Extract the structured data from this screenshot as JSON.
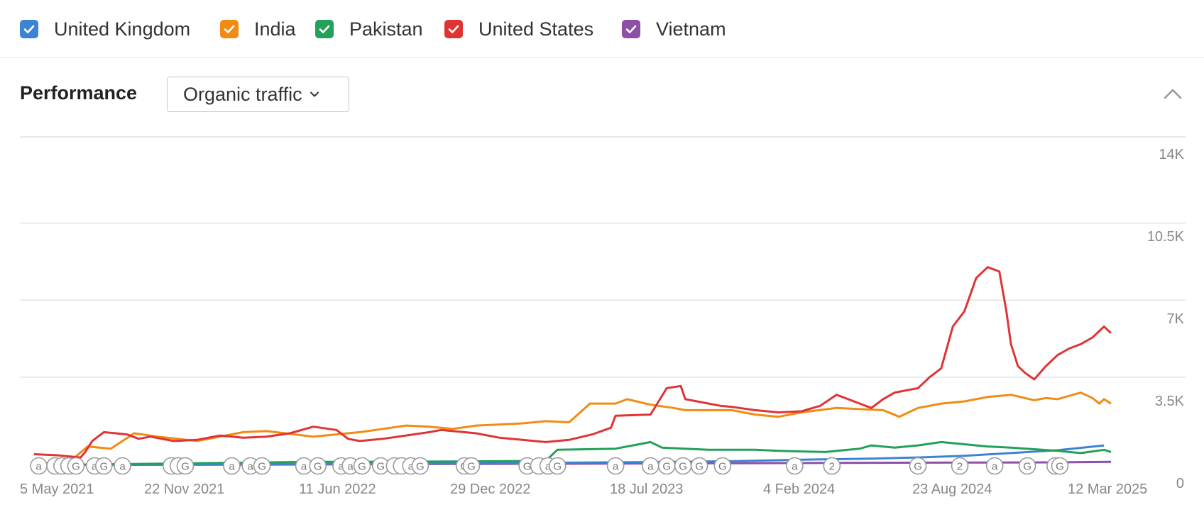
{
  "legend": [
    {
      "label": "United Kingdom",
      "color": "#3b84d4"
    },
    {
      "label": "India",
      "color": "#f28b13"
    },
    {
      "label": "Pakistan",
      "color": "#23a05a"
    },
    {
      "label": "United States",
      "color": "#e03434"
    },
    {
      "label": "Vietnam",
      "color": "#8e4fa6"
    }
  ],
  "header": {
    "title": "Performance",
    "dropdown_label": "Organic traffic",
    "collapse_icon": "chevron-up-icon"
  },
  "chart_data": {
    "type": "line",
    "x_tick_labels": [
      "5 May 2021",
      "22 Nov 2021",
      "11 Jun 2022",
      "29 Dec 2022",
      "18 Jul 2023",
      "4 Feb 2024",
      "23 Aug 2024",
      "12 Mar 2025"
    ],
    "y_tick_labels": [
      "0",
      "3.5K",
      "7K",
      "10.5K",
      "14K"
    ],
    "y_ticks": [
      0,
      3500,
      7000,
      10500,
      14000
    ],
    "ylim": [
      0,
      14500
    ],
    "x_range_months": [
      0,
      46.3
    ],
    "grid": true,
    "legend_position": "top",
    "series": [
      {
        "name": "United Kingdom",
        "color": "#3b84d4",
        "points": [
          [
            0,
            0
          ],
          [
            6,
            40
          ],
          [
            12,
            60
          ],
          [
            18,
            90
          ],
          [
            22,
            110
          ],
          [
            26,
            140
          ],
          [
            30,
            180
          ],
          [
            33,
            250
          ],
          [
            36,
            300
          ],
          [
            38,
            350
          ],
          [
            40,
            430
          ],
          [
            42,
            550
          ],
          [
            44,
            680
          ],
          [
            46,
            900
          ]
        ]
      },
      {
        "name": "India",
        "color": "#f28b13",
        "points": [
          [
            0,
            50
          ],
          [
            1,
            150
          ],
          [
            1.6,
            220
          ],
          [
            2.3,
            850
          ],
          [
            3.3,
            750
          ],
          [
            4.3,
            1450
          ],
          [
            5.3,
            1300
          ],
          [
            7,
            1100
          ],
          [
            9,
            1500
          ],
          [
            10,
            1550
          ],
          [
            12,
            1300
          ],
          [
            13,
            1400
          ],
          [
            14,
            1500
          ],
          [
            15,
            1650
          ],
          [
            16,
            1800
          ],
          [
            17,
            1750
          ],
          [
            18,
            1650
          ],
          [
            19,
            1800
          ],
          [
            20,
            1850
          ],
          [
            21,
            1900
          ],
          [
            22,
            2000
          ],
          [
            23,
            1950
          ],
          [
            23.9,
            2800
          ],
          [
            25,
            2800
          ],
          [
            25.5,
            3000
          ],
          [
            26.5,
            2750
          ],
          [
            27.5,
            2600
          ],
          [
            28,
            2500
          ],
          [
            30,
            2500
          ],
          [
            31,
            2300
          ],
          [
            32,
            2200
          ],
          [
            33,
            2400
          ],
          [
            34.5,
            2600
          ],
          [
            35.5,
            2550
          ],
          [
            36.5,
            2500
          ],
          [
            37.2,
            2200
          ],
          [
            38,
            2600
          ],
          [
            39,
            2800
          ],
          [
            40,
            2900
          ],
          [
            41,
            3100
          ],
          [
            42,
            3200
          ],
          [
            43,
            2950
          ],
          [
            43.5,
            3050
          ],
          [
            44,
            3000
          ],
          [
            45,
            3300
          ],
          [
            45.5,
            3050
          ],
          [
            45.8,
            2800
          ],
          [
            46,
            3000
          ],
          [
            46.3,
            2800
          ]
        ]
      },
      {
        "name": "Pakistan",
        "color": "#23a05a",
        "points": [
          [
            0,
            0
          ],
          [
            4,
            50
          ],
          [
            8,
            100
          ],
          [
            12,
            150
          ],
          [
            16,
            160
          ],
          [
            20,
            180
          ],
          [
            22,
            200
          ],
          [
            22.5,
            700
          ],
          [
            25,
            750
          ],
          [
            26,
            950
          ],
          [
            26.5,
            1050
          ],
          [
            27,
            800
          ],
          [
            29,
            700
          ],
          [
            31,
            700
          ],
          [
            32,
            650
          ],
          [
            34,
            600
          ],
          [
            35,
            700
          ],
          [
            35.5,
            750
          ],
          [
            36,
            900
          ],
          [
            37,
            800
          ],
          [
            38,
            900
          ],
          [
            39,
            1050
          ],
          [
            40,
            950
          ],
          [
            41,
            850
          ],
          [
            42,
            800
          ],
          [
            44,
            650
          ],
          [
            45,
            550
          ],
          [
            46,
            700
          ],
          [
            46.3,
            600
          ]
        ]
      },
      {
        "name": "United States",
        "color": "#e03434",
        "points": [
          [
            0,
            500
          ],
          [
            1,
            450
          ],
          [
            2,
            350
          ],
          [
            2.2,
            600
          ],
          [
            2.5,
            1100
          ],
          [
            3,
            1500
          ],
          [
            4,
            1400
          ],
          [
            4.5,
            1200
          ],
          [
            5,
            1300
          ],
          [
            6,
            1100
          ],
          [
            7,
            1150
          ],
          [
            8,
            1350
          ],
          [
            9,
            1250
          ],
          [
            10,
            1300
          ],
          [
            11,
            1450
          ],
          [
            12,
            1750
          ],
          [
            13,
            1600
          ],
          [
            13.5,
            1200
          ],
          [
            14,
            1100
          ],
          [
            15,
            1200
          ],
          [
            16,
            1350
          ],
          [
            17,
            1500
          ],
          [
            17.5,
            1600
          ],
          [
            18,
            1550
          ],
          [
            19,
            1450
          ],
          [
            20,
            1250
          ],
          [
            21,
            1150
          ],
          [
            22,
            1050
          ],
          [
            23,
            1150
          ],
          [
            24,
            1400
          ],
          [
            24.8,
            1700
          ],
          [
            25,
            2250
          ],
          [
            26.5,
            2300
          ],
          [
            27.2,
            3500
          ],
          [
            27.8,
            3600
          ],
          [
            28,
            3000
          ],
          [
            29,
            2800
          ],
          [
            29.5,
            2700
          ],
          [
            30,
            2650
          ],
          [
            31,
            2500
          ],
          [
            32,
            2400
          ],
          [
            33,
            2450
          ],
          [
            33.8,
            2700
          ],
          [
            34.5,
            3200
          ],
          [
            35.5,
            2800
          ],
          [
            36,
            2600
          ],
          [
            36.5,
            3000
          ],
          [
            37,
            3300
          ],
          [
            38,
            3500
          ],
          [
            38.5,
            4000
          ],
          [
            39,
            4400
          ],
          [
            39.5,
            6300
          ],
          [
            40,
            7000
          ],
          [
            40.5,
            8500
          ],
          [
            41,
            9000
          ],
          [
            41.5,
            8800
          ],
          [
            41.8,
            7000
          ],
          [
            42,
            5500
          ],
          [
            42.3,
            4500
          ],
          [
            42.6,
            4200
          ],
          [
            43,
            3900
          ],
          [
            43.5,
            4500
          ],
          [
            44,
            5000
          ],
          [
            44.5,
            5300
          ],
          [
            45,
            5500
          ],
          [
            45.5,
            5800
          ],
          [
            46,
            6300
          ],
          [
            46.3,
            6000
          ]
        ]
      },
      {
        "name": "Vietnam",
        "color": "#8e4fa6",
        "points": [
          [
            0,
            10
          ],
          [
            10,
            30
          ],
          [
            20,
            60
          ],
          [
            30,
            90
          ],
          [
            36,
            110
          ],
          [
            40,
            120
          ],
          [
            44,
            130
          ],
          [
            46.3,
            150
          ]
        ]
      }
    ],
    "annotations": [
      {
        "x": 0.2,
        "label": "a"
      },
      {
        "x": 0.9,
        "label": ""
      },
      {
        "x": 1.2,
        "label": ""
      },
      {
        "x": 1.5,
        "label": ""
      },
      {
        "x": 1.8,
        "label": "G"
      },
      {
        "x": 2.6,
        "label": "a"
      },
      {
        "x": 3.0,
        "label": "G"
      },
      {
        "x": 3.8,
        "label": "a"
      },
      {
        "x": 5.9,
        "label": ""
      },
      {
        "x": 6.2,
        "label": ""
      },
      {
        "x": 6.5,
        "label": "G"
      },
      {
        "x": 8.5,
        "label": "a"
      },
      {
        "x": 9.3,
        "label": "a"
      },
      {
        "x": 9.8,
        "label": "G"
      },
      {
        "x": 11.6,
        "label": "a"
      },
      {
        "x": 12.2,
        "label": "G"
      },
      {
        "x": 13.2,
        "label": "a"
      },
      {
        "x": 13.6,
        "label": "a"
      },
      {
        "x": 14.1,
        "label": "G"
      },
      {
        "x": 14.9,
        "label": "G"
      },
      {
        "x": 15.5,
        "label": ""
      },
      {
        "x": 15.8,
        "label": ""
      },
      {
        "x": 16.2,
        "label": "a"
      },
      {
        "x": 16.6,
        "label": "G"
      },
      {
        "x": 18.5,
        "label": "G"
      },
      {
        "x": 18.8,
        "label": "G"
      },
      {
        "x": 21.2,
        "label": "G"
      },
      {
        "x": 21.7,
        "label": ""
      },
      {
        "x": 22.1,
        "label": "a"
      },
      {
        "x": 22.5,
        "label": "G"
      },
      {
        "x": 25.0,
        "label": "a"
      },
      {
        "x": 26.5,
        "label": "a"
      },
      {
        "x": 27.2,
        "label": "G"
      },
      {
        "x": 27.9,
        "label": "G"
      },
      {
        "x": 28.6,
        "label": "G"
      },
      {
        "x": 29.6,
        "label": "G"
      },
      {
        "x": 32.7,
        "label": "a"
      },
      {
        "x": 34.3,
        "label": "2"
      },
      {
        "x": 38.0,
        "label": "G"
      },
      {
        "x": 39.8,
        "label": "2"
      },
      {
        "x": 41.3,
        "label": "a"
      },
      {
        "x": 42.7,
        "label": "G"
      },
      {
        "x": 43.9,
        "label": "G"
      },
      {
        "x": 44.1,
        "label": "G"
      }
    ]
  }
}
